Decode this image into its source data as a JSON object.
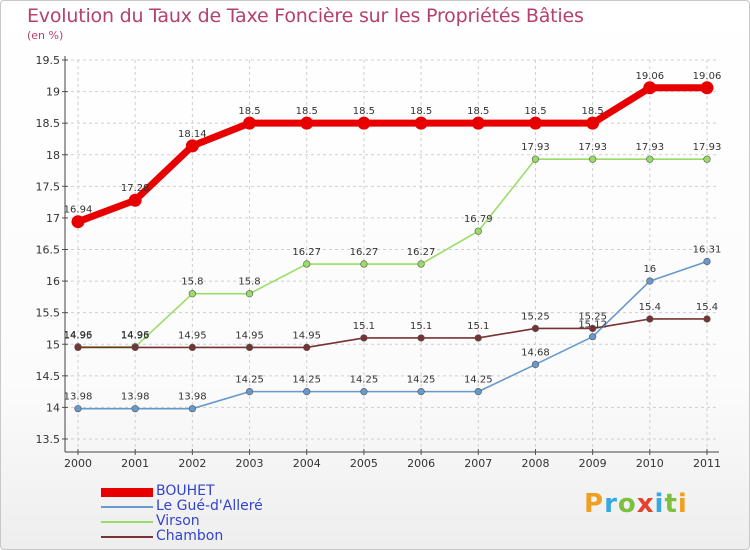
{
  "header": {
    "title": "Evolution du Taux de Taxe Foncière sur les Propriétés Bâties",
    "unit": "(en %)"
  },
  "logo": {
    "letters": [
      "P",
      "r",
      "o",
      "x",
      "i",
      "t",
      "i"
    ],
    "colors": [
      "#f0a020",
      "#38a8e0",
      "#7cc040",
      "#e84030",
      "#38a8e0",
      "#7cc040",
      "#f0a020"
    ]
  },
  "chart_data": {
    "type": "line",
    "title": "Evolution du Taux de Taxe Foncière sur les Propriétés Bâties",
    "ylabel": "(en %)",
    "xlabel": "",
    "ylim": [
      13.5,
      19.5
    ],
    "yticks": [
      "13.5",
      "14",
      "14.5",
      "15",
      "15.5",
      "16",
      "16.5",
      "17",
      "17.5",
      "18",
      "18.5",
      "19",
      "19.5"
    ],
    "categories": [
      "2000",
      "2001",
      "2002",
      "2003",
      "2004",
      "2005",
      "2006",
      "2007",
      "2008",
      "2009",
      "2010",
      "2011"
    ],
    "grid": true,
    "series": [
      {
        "name": "BOUHET",
        "color": "#e80000",
        "values": [
          16.94,
          17.28,
          18.14,
          18.5,
          18.5,
          18.5,
          18.5,
          18.5,
          18.5,
          18.5,
          19.06,
          19.06
        ],
        "labels": [
          "16.94",
          "17.28",
          "18.14",
          "18.5",
          "18.5",
          "18.5",
          "18.5",
          "18.5",
          "18.5",
          "18.5",
          "19.06",
          "19.06"
        ]
      },
      {
        "name": "Le Gué-d'Alleré",
        "color": "#6699cc",
        "values": [
          13.98,
          13.98,
          13.98,
          14.25,
          14.25,
          14.25,
          14.25,
          14.25,
          14.68,
          15.12,
          16,
          16.31
        ],
        "labels": [
          "13.98",
          "13.98",
          "13.98",
          "14.25",
          "14.25",
          "14.25",
          "14.25",
          "14.25",
          "14.68",
          "15.12",
          "16",
          "16.31"
        ]
      },
      {
        "name": "Virson",
        "color": "#99dd66",
        "values": [
          14.96,
          14.96,
          15.8,
          15.8,
          16.27,
          16.27,
          16.27,
          16.79,
          17.93,
          17.93,
          17.93,
          17.93
        ],
        "labels": [
          "14.96",
          "14.96",
          "15.8",
          "15.8",
          "16.27",
          "16.27",
          "16.27",
          "16.79",
          "17.93",
          "17.93",
          "17.93",
          "17.93"
        ]
      },
      {
        "name": "Chambon",
        "color": "#773333",
        "values": [
          14.95,
          14.95,
          14.95,
          14.95,
          14.95,
          15.1,
          15.1,
          15.1,
          15.25,
          15.25,
          15.4,
          15.4
        ],
        "labels": [
          "14.95",
          "14.95",
          "14.95",
          "14.95",
          "14.95",
          "15.1",
          "15.1",
          "15.1",
          "15.25",
          "15.25",
          "15.4",
          "15.4"
        ]
      }
    ],
    "legend": "bottom-left"
  }
}
